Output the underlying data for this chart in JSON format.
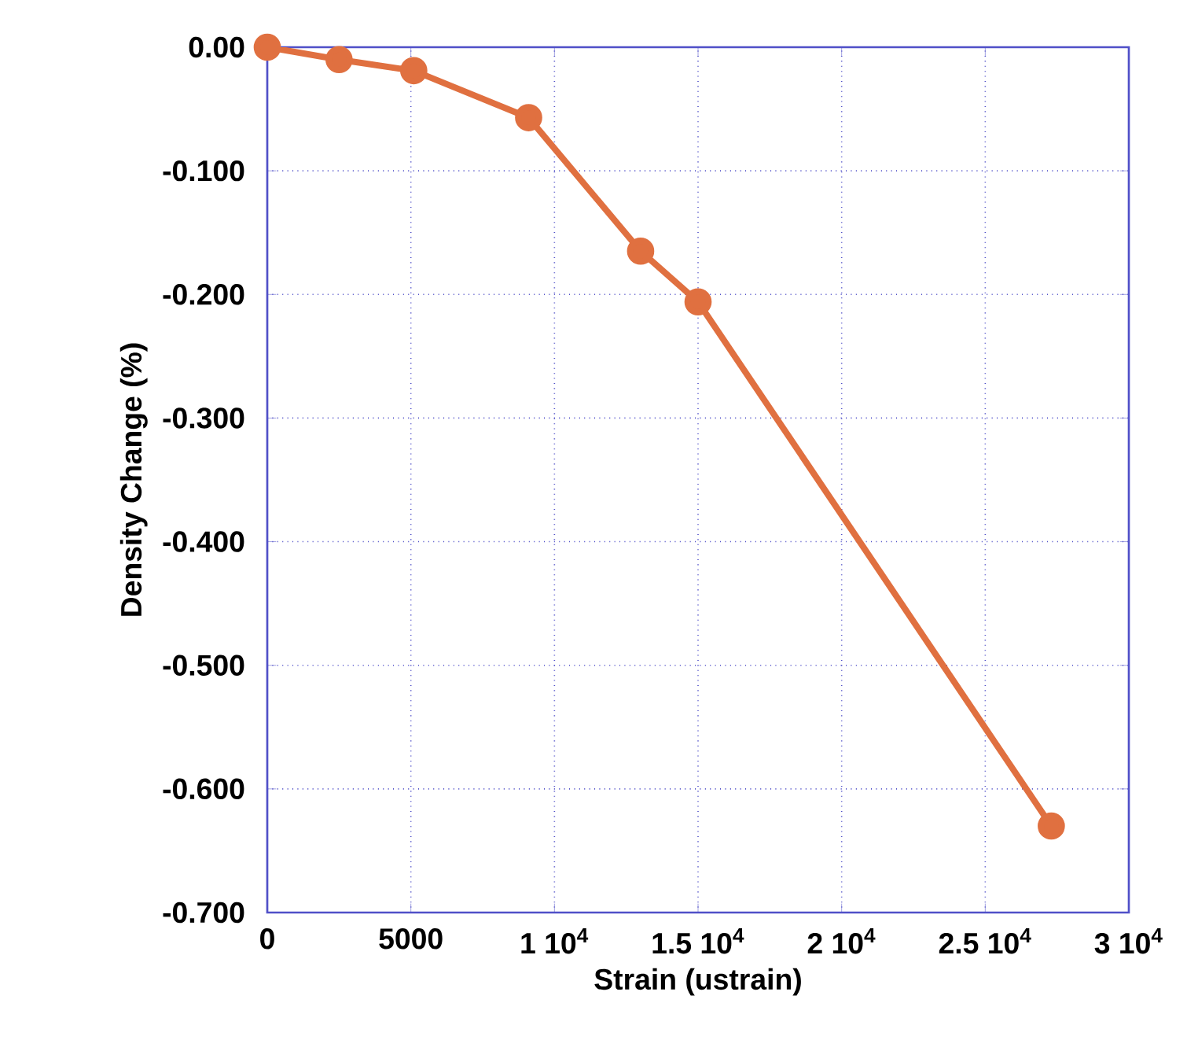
{
  "chart_data": {
    "type": "line",
    "xlabel": "Strain (ustrain)",
    "ylabel": "Density Change (%)",
    "x": [
      0,
      2500,
      5100,
      9100,
      13000,
      15000,
      27300
    ],
    "values": [
      0,
      -0.01,
      -0.019,
      -0.057,
      -0.165,
      -0.206,
      -0.63
    ],
    "color": "#e07040",
    "marker": "circle",
    "line_style": "solid",
    "grid": true,
    "xlim": [
      0,
      30000
    ],
    "ylim": [
      -0.7,
      0
    ],
    "xticks": [
      0,
      5000,
      {
        "value": 10000,
        "label": "1 10$^{4}$"
      },
      {
        "value": 15000,
        "label": "1.5 10$^{4}$"
      },
      {
        "value": 20000,
        "label": "2 10$^{4}$"
      },
      {
        "value": 25000,
        "label": "2.5 10$^{4}$"
      },
      {
        "value": 30000,
        "label": "3 10$^{4}$"
      }
    ],
    "yticks": [
      {
        "value": 0,
        "label": "0.00"
      },
      {
        "value": -0.1,
        "label": "-0.100"
      },
      {
        "value": -0.2,
        "label": "-0.200"
      },
      {
        "value": -0.3,
        "label": "-0.300"
      },
      {
        "value": -0.4,
        "label": "-0.400"
      },
      {
        "value": -0.5,
        "label": "-0.500"
      },
      {
        "value": -0.6,
        "label": "-0.600"
      },
      {
        "value": -0.7,
        "label": "-0.700"
      }
    ]
  }
}
